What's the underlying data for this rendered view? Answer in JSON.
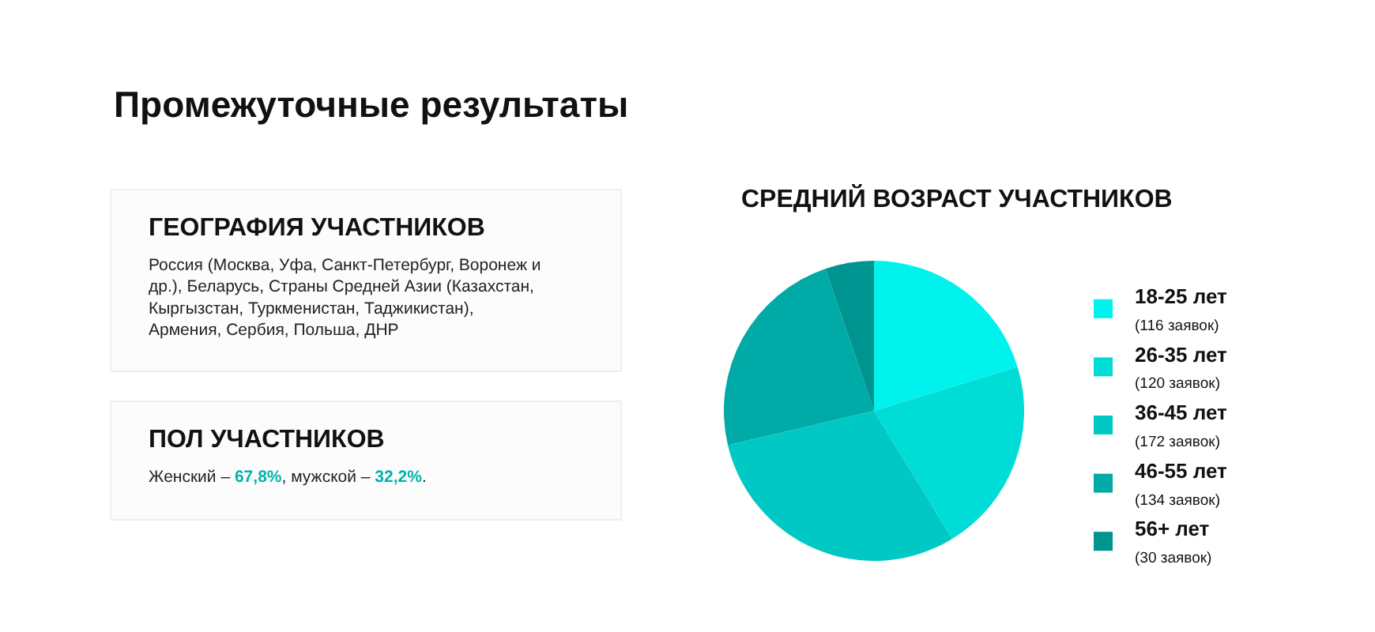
{
  "chart_data": [
    {
      "type": "other",
      "title": "Промежуточные результаты"
    },
    {
      "type": "other",
      "title": "ГЕОГРАФИЯ УЧАСТНИКОВ",
      "annotations": [
        "Россия (Москва, Уфа, Санкт-Петербург, Воронеж и др.), Беларусь, Страны Средней Азии (Казахстан, Кыргызстан, Туркменистан, Таджикистан), Армения, Сербия, Польша, ДНР"
      ]
    },
    {
      "type": "other",
      "title": "ПОЛ УЧАСТНИКОВ",
      "annotations": [
        "Женский – 67,8%, мужской – 32,2%."
      ]
    },
    {
      "type": "pie",
      "title": "СРЕДНИЙ ВОЗРАСТ УЧАСТНИКОВ",
      "categories": [
        "18-25 лет",
        "26-35 лет",
        "36-45 лет",
        "46-55 лет",
        "56+ лет"
      ],
      "values": [
        116,
        120,
        172,
        134,
        30
      ],
      "value_labels": [
        "(116 заявок)",
        "(120 заявок)",
        "(172 заявок)",
        "(134 заявок)",
        "(30 заявок)"
      ],
      "colors": [
        "#00f2ec",
        "#00dcd6",
        "#00c9c5",
        "#00aaa6",
        "#009490"
      ],
      "legend": "right"
    }
  ]
}
